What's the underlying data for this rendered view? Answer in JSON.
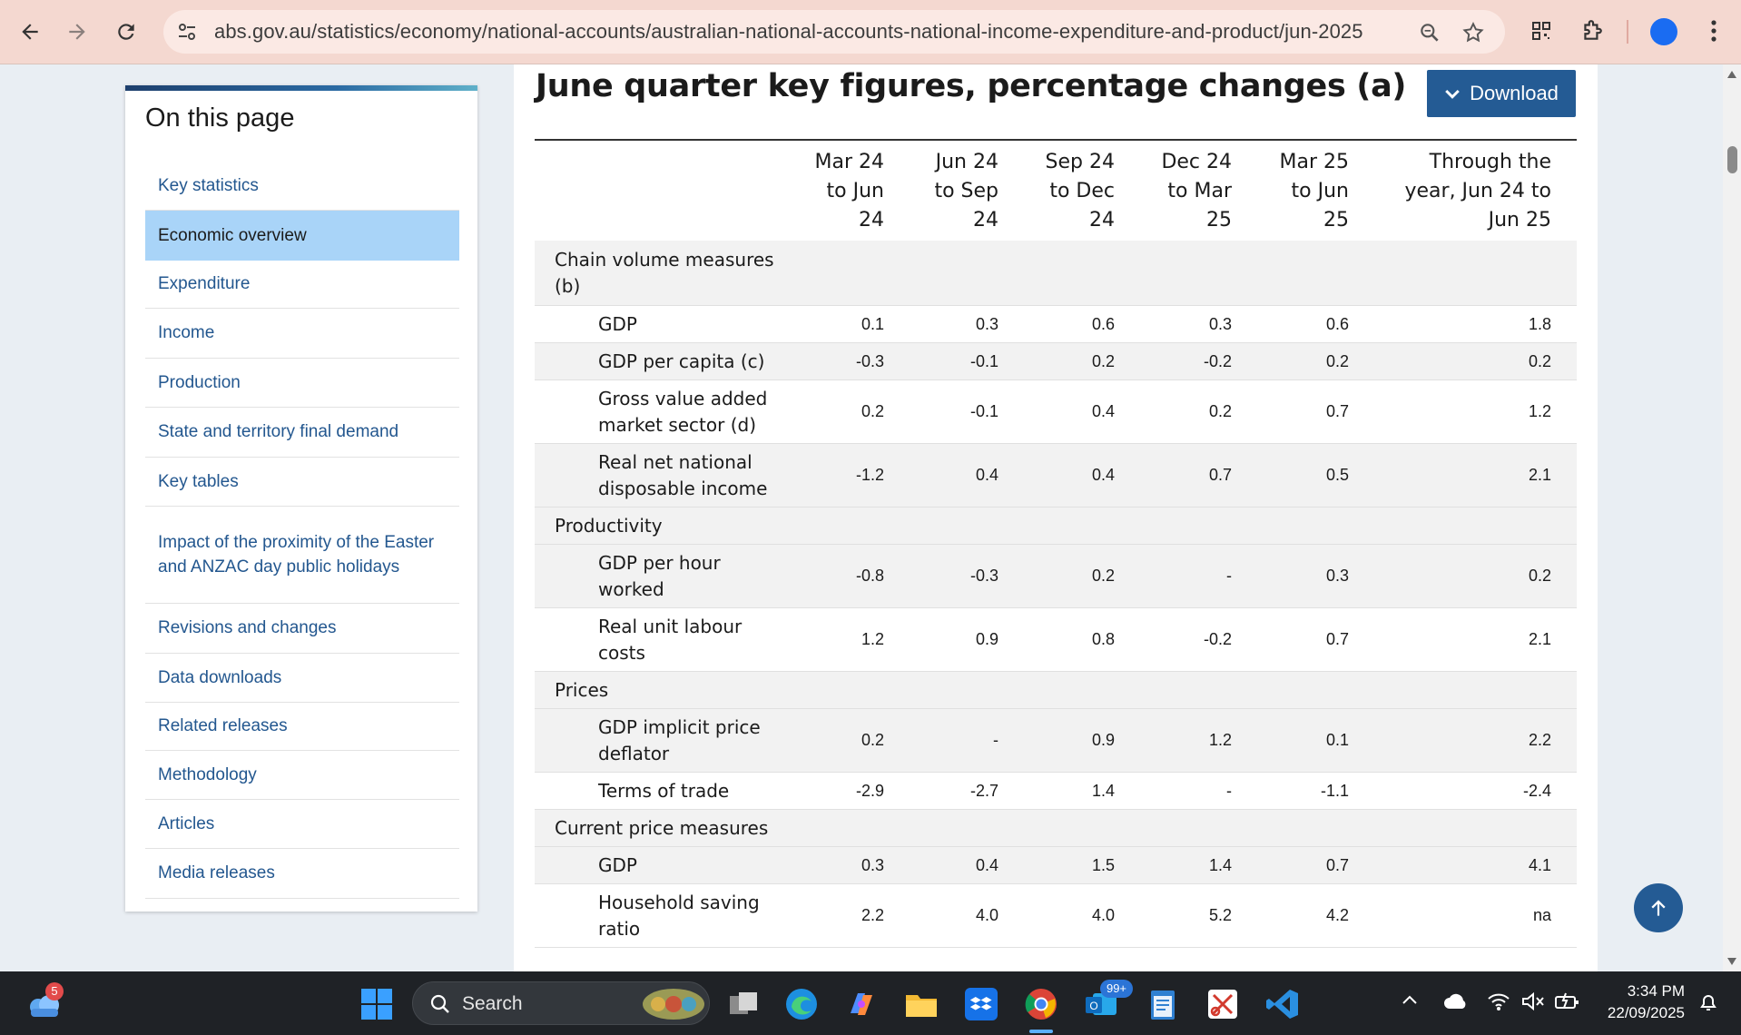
{
  "browser": {
    "url": "abs.gov.au/statistics/economy/national-accounts/australian-national-accounts-national-income-expenditure-and-product/jun-2025"
  },
  "sidebar": {
    "title": "On this page",
    "items": [
      {
        "label": "Key statistics"
      },
      {
        "label": "Economic overview"
      },
      {
        "label": "Expenditure"
      },
      {
        "label": "Income"
      },
      {
        "label": "Production"
      },
      {
        "label": "State and territory final demand"
      },
      {
        "label": "Key tables"
      },
      {
        "label": "Impact of the proximity of the Easter and ANZAC day public holidays"
      },
      {
        "label": "Revisions and changes"
      },
      {
        "label": "Data downloads"
      },
      {
        "label": "Related releases"
      },
      {
        "label": "Methodology"
      },
      {
        "label": "Articles"
      },
      {
        "label": "Media releases"
      }
    ],
    "active_index": 1
  },
  "main": {
    "title": "June quarter key figures, percentage changes (a)",
    "download_label": "Download",
    "columns": [
      {
        "lines": [
          "Mar 24",
          "to Jun",
          "24"
        ]
      },
      {
        "lines": [
          "Jun 24",
          "to Sep",
          "24"
        ]
      },
      {
        "lines": [
          "Sep 24",
          "to Dec",
          "24"
        ]
      },
      {
        "lines": [
          "Dec 24",
          "to Mar",
          "25"
        ]
      },
      {
        "lines": [
          "Mar 25",
          "to Jun",
          "25"
        ]
      },
      {
        "lines": [
          "Through the",
          "year, Jun 24 to",
          "Jun 25"
        ]
      }
    ],
    "rows": [
      {
        "type": "section",
        "label": [
          "Chain volume measures",
          "(b)"
        ]
      },
      {
        "type": "data",
        "label": [
          "GDP"
        ],
        "values": [
          "0.1",
          "0.3",
          "0.6",
          "0.3",
          "0.6",
          "1.8"
        ]
      },
      {
        "type": "data",
        "label": [
          "GDP per capita (c)"
        ],
        "values": [
          "-0.3",
          "-0.1",
          "0.2",
          "-0.2",
          "0.2",
          "0.2"
        ]
      },
      {
        "type": "data",
        "label": [
          "Gross value added",
          "market sector (d)"
        ],
        "values": [
          "0.2",
          "-0.1",
          "0.4",
          "0.2",
          "0.7",
          "1.2"
        ]
      },
      {
        "type": "data",
        "label": [
          "Real net national",
          "disposable income"
        ],
        "values": [
          "-1.2",
          "0.4",
          "0.4",
          "0.7",
          "0.5",
          "2.1"
        ]
      },
      {
        "type": "section",
        "label": [
          "Productivity"
        ]
      },
      {
        "type": "data",
        "label": [
          "GDP per hour",
          "worked"
        ],
        "values": [
          "-0.8",
          "-0.3",
          "0.2",
          "-",
          "0.3",
          "0.2"
        ]
      },
      {
        "type": "data",
        "label": [
          "Real unit labour",
          "costs"
        ],
        "values": [
          "1.2",
          "0.9",
          "0.8",
          "-0.2",
          "0.7",
          "2.1"
        ]
      },
      {
        "type": "section",
        "label": [
          "Prices"
        ]
      },
      {
        "type": "data",
        "label": [
          "GDP implicit price",
          "deflator"
        ],
        "values": [
          "0.2",
          "-",
          "0.9",
          "1.2",
          "0.1",
          "2.2"
        ]
      },
      {
        "type": "data",
        "label": [
          "Terms of trade"
        ],
        "values": [
          "-2.9",
          "-2.7",
          "1.4",
          "-",
          "-1.1",
          "-2.4"
        ]
      },
      {
        "type": "section",
        "label": [
          "Current price measures"
        ]
      },
      {
        "type": "data",
        "label": [
          "GDP"
        ],
        "values": [
          "0.3",
          "0.4",
          "1.5",
          "1.4",
          "0.7",
          "4.1"
        ]
      },
      {
        "type": "data",
        "label": [
          "Household saving",
          "ratio"
        ],
        "values": [
          "2.2",
          "4.0",
          "4.0",
          "5.2",
          "4.2",
          "na"
        ]
      }
    ]
  },
  "taskbar": {
    "search_placeholder": "Search",
    "weather_badge": "5",
    "outlook_badge": "99+",
    "time": "3:34 PM",
    "date": "22/09/2025"
  },
  "colors": {
    "browser_bar": "#f4d8d0",
    "accent_blue": "#245b94",
    "active_item": "#a9d4f8",
    "link": "#23578f",
    "taskbar": "#1f2226"
  }
}
